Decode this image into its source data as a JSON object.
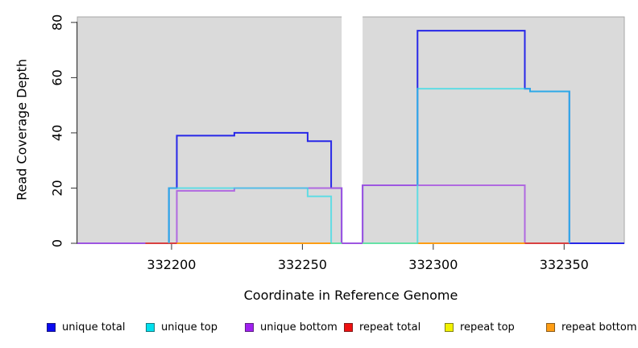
{
  "page": {
    "background": "#ffffff"
  },
  "chart_data": {
    "type": "line",
    "subtype": "step-coverage",
    "title": "",
    "xlabel": "Coordinate in Reference Genome",
    "ylabel": "Read Coverage Depth",
    "xlim": [
      332164,
      332373
    ],
    "ylim": [
      0,
      82
    ],
    "x_ticks": [
      332200,
      332250,
      332300,
      332350
    ],
    "y_ticks": [
      0,
      20,
      40,
      60,
      80
    ],
    "grid": false,
    "plot_background": "#dadada",
    "plot_border_color": "#a6a6a6",
    "axis_color": "#333333",
    "no_data_band": {
      "from": 332265,
      "to": 332273,
      "color": "#ffffff"
    },
    "legend_position": "bottom",
    "legend": {
      "items": [
        {
          "label": "unique total",
          "color": "#0a0af0"
        },
        {
          "label": "unique top",
          "color": "#00e0ee"
        },
        {
          "label": "unique bottom",
          "color": "#a020f0"
        },
        {
          "label": "repeat total",
          "color": "#ee1111"
        },
        {
          "label": "repeat top",
          "color": "#f2f200"
        },
        {
          "label": "repeat bottom",
          "color": "#ff9d14"
        }
      ]
    },
    "series": [
      {
        "name": "unique total",
        "color": "#2727e8",
        "opacity": 1,
        "width": 2,
        "points": [
          [
            332164,
            0
          ],
          [
            332199,
            0
          ],
          [
            332199,
            20
          ],
          [
            332202,
            20
          ],
          [
            332202,
            39
          ],
          [
            332224,
            39
          ],
          [
            332224,
            40
          ],
          [
            332252,
            40
          ],
          [
            332252,
            37
          ],
          [
            332261,
            37
          ],
          [
            332261,
            20
          ],
          [
            332265,
            20
          ],
          [
            332265,
            0
          ],
          [
            332273,
            0
          ],
          [
            332273,
            21
          ],
          [
            332294,
            21
          ],
          [
            332294,
            77
          ],
          [
            332335,
            77
          ],
          [
            332335,
            56
          ],
          [
            332337,
            56
          ],
          [
            332337,
            55
          ],
          [
            332352,
            55
          ],
          [
            332352,
            0
          ],
          [
            332373,
            0
          ]
        ]
      },
      {
        "name": "unique bottom",
        "color": "#ab5ce0",
        "opacity": 0.9,
        "width": 2,
        "points": [
          [
            332164,
            0
          ],
          [
            332202,
            0
          ],
          [
            332202,
            19
          ],
          [
            332224,
            19
          ],
          [
            332224,
            20
          ],
          [
            332265,
            20
          ],
          [
            332265,
            0
          ],
          [
            332273,
            0
          ],
          [
            332273,
            21
          ],
          [
            332335,
            21
          ],
          [
            332335,
            0
          ]
        ]
      },
      {
        "name": "repeat total",
        "color": "#d94040",
        "opacity": 1,
        "width": 2,
        "points": [
          [
            332190,
            0
          ],
          [
            332265,
            0
          ],
          null,
          [
            332273,
            0
          ],
          [
            332352,
            0
          ]
        ]
      },
      {
        "name": "repeat top",
        "color": "#f0f000",
        "opacity": 1,
        "width": 2,
        "points": [
          [
            332261,
            0
          ],
          [
            332265,
            0
          ],
          null,
          [
            332273,
            0
          ],
          [
            332294,
            0
          ]
        ]
      },
      {
        "name": "repeat bottom",
        "color": "#ff9d14",
        "opacity": 1,
        "width": 2,
        "points": [
          [
            332202,
            0
          ],
          [
            332261,
            0
          ],
          null,
          [
            332294,
            0
          ],
          [
            332335,
            0
          ]
        ]
      },
      {
        "name": "unique top",
        "color": "#30dce8",
        "opacity": 0.72,
        "width": 2,
        "points": [
          [
            332199,
            0
          ],
          [
            332199,
            20
          ],
          [
            332252,
            20
          ],
          [
            332252,
            17
          ],
          [
            332261,
            17
          ],
          [
            332261,
            0
          ],
          [
            332265,
            0
          ],
          null,
          [
            332273,
            0
          ],
          [
            332294,
            0
          ],
          [
            332294,
            56
          ],
          [
            332337,
            56
          ],
          [
            332337,
            55
          ],
          [
            332352,
            55
          ],
          [
            332352,
            0
          ]
        ]
      }
    ]
  }
}
